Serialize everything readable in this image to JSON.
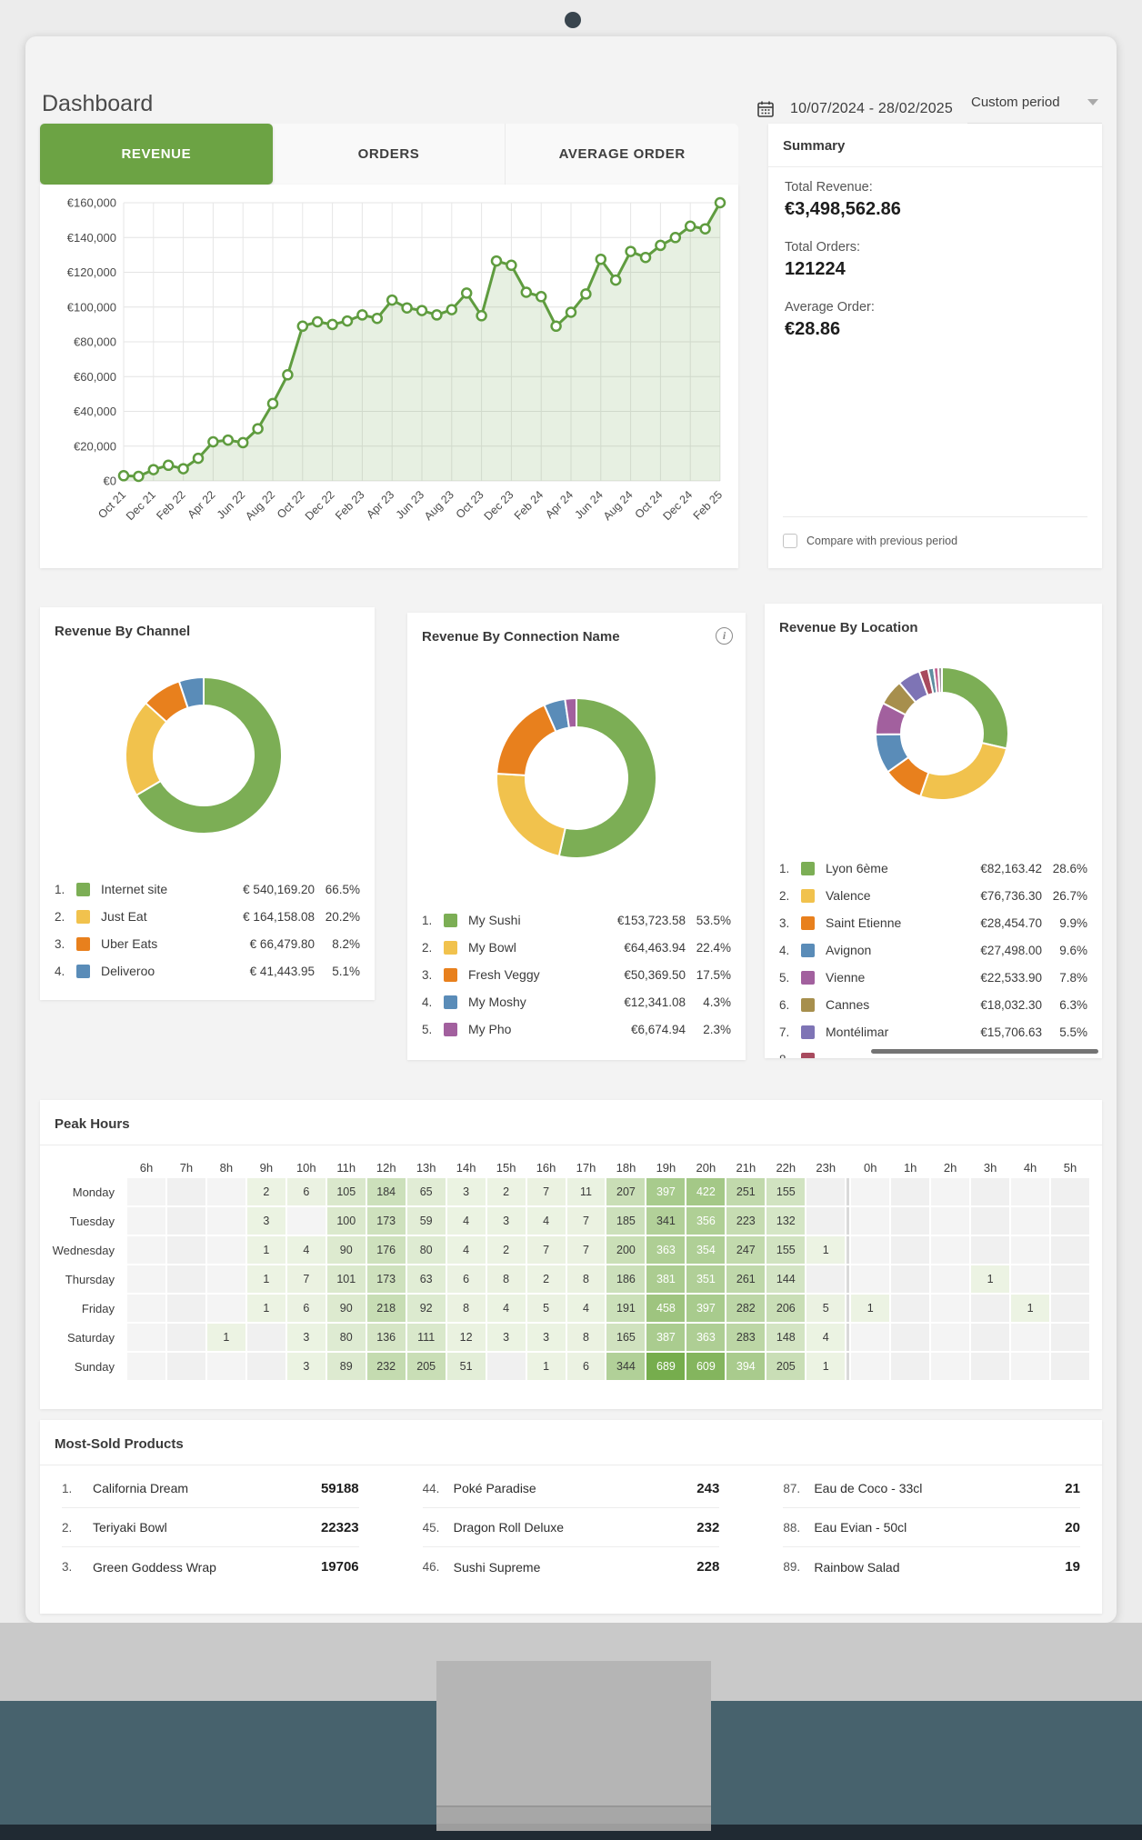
{
  "header": {
    "title": "Dashboard",
    "date_range": "10/07/2024 - 28/02/2025",
    "period_selector": "Custom period"
  },
  "tabs": [
    {
      "label": "REVENUE",
      "active": true
    },
    {
      "label": "ORDERS",
      "active": false
    },
    {
      "label": "AVERAGE ORDER",
      "active": false
    }
  ],
  "summary": {
    "title": "Summary",
    "total_revenue_label": "Total Revenue:",
    "total_revenue": "€3,498,562.86",
    "total_orders_label": "Total Orders:",
    "total_orders": "121224",
    "average_order_label": "Average Order:",
    "average_order": "€28.86",
    "compare_label": "Compare with previous period"
  },
  "colors": {
    "accent_green": "#6ca344",
    "line_green": "#5f9c3f",
    "heat_low": "#ecf3e3",
    "heat_high": "#76ad4d"
  },
  "chart_data": [
    {
      "id": "revenue-trend",
      "type": "line",
      "title": "Revenue by month",
      "ylabel": "",
      "xlabel": "",
      "ylim": [
        0,
        160000
      ],
      "y_ticks": [
        "€0",
        "€20,000",
        "€40,000",
        "€60,000",
        "€80,000",
        "€100,000",
        "€120,000",
        "€140,000",
        "€160,000"
      ],
      "grid": true,
      "x": [
        "Oct 21",
        "Nov 21",
        "Dec 21",
        "Jan 22",
        "Feb 22",
        "Mar 22",
        "Apr 22",
        "May 22",
        "Jun 22",
        "Jul 22",
        "Aug 22",
        "Sep 22",
        "Oct 22",
        "Nov 22",
        "Dec 22",
        "Jan 23",
        "Feb 23",
        "Mar 23",
        "Apr 23",
        "May 23",
        "Jun 23",
        "Jul 23",
        "Aug 23",
        "Sep 23",
        "Oct 23",
        "Nov 23",
        "Dec 23",
        "Jan 24",
        "Feb 24",
        "Mar 24",
        "Apr 24",
        "May 24",
        "Jun 24",
        "Jul 24",
        "Aug 24",
        "Sep 24",
        "Oct 24",
        "Nov 24",
        "Dec 24",
        "Jan 25",
        "Feb 25"
      ],
      "x_tick_labels": [
        "Oct 21",
        "Dec 21",
        "Feb 22",
        "Apr 22",
        "Jun 22",
        "Aug 22",
        "Oct 22",
        "Dec 22",
        "Feb 23",
        "Apr 23",
        "Jun 23",
        "Aug 23",
        "Oct 23",
        "Dec 23",
        "Feb 24",
        "Apr 24",
        "Jun 24",
        "Aug 24",
        "Oct 24",
        "Dec 24",
        "Feb 25"
      ],
      "values": [
        3000,
        2600,
        6500,
        9000,
        7000,
        13000,
        22500,
        23500,
        22000,
        30000,
        44500,
        61000,
        89000,
        91500,
        90000,
        92000,
        95500,
        93500,
        104000,
        99500,
        98000,
        95500,
        98500,
        108000,
        95000,
        126500,
        124000,
        108500,
        106000,
        89000,
        97000,
        107500,
        127500,
        115500,
        132000,
        128500,
        135500,
        140000,
        146500,
        145000,
        160000
      ]
    },
    {
      "id": "revenue-by-channel",
      "type": "donut",
      "title": "Revenue By Channel",
      "legend_position": "bottom",
      "items": [
        {
          "label": "Internet site",
          "amount": "€ 540,169.20",
          "pct": 66.5,
          "color": "#7cae55"
        },
        {
          "label": "Just Eat",
          "amount": "€ 164,158.08",
          "pct": 20.2,
          "color": "#f1c24d"
        },
        {
          "label": "Uber Eats",
          "amount": "€ 66,479.80",
          "pct": 8.2,
          "color": "#e8801d"
        },
        {
          "label": "Deliveroo",
          "amount": "€ 41,443.95",
          "pct": 5.1,
          "color": "#5a8cb8"
        }
      ]
    },
    {
      "id": "revenue-by-connection-name",
      "type": "donut",
      "title": "Revenue By Connection Name",
      "legend_position": "bottom",
      "items": [
        {
          "label": "My Sushi",
          "amount": "€153,723.58",
          "pct": 53.5,
          "color": "#7cae55"
        },
        {
          "label": "My Bowl",
          "amount": "€64,463.94",
          "pct": 22.4,
          "color": "#f1c24d"
        },
        {
          "label": "Fresh Veggy",
          "amount": "€50,369.50",
          "pct": 17.5,
          "color": "#e8801d"
        },
        {
          "label": "My Moshy",
          "amount": "€12,341.08",
          "pct": 4.3,
          "color": "#5a8cb8"
        },
        {
          "label": "My Pho",
          "amount": "€6,674.94",
          "pct": 2.3,
          "color": "#a2609e"
        }
      ]
    },
    {
      "id": "revenue-by-location",
      "type": "donut",
      "title": "Revenue By Location",
      "legend_position": "bottom",
      "items": [
        {
          "label": "Lyon 6ème",
          "amount": "€82,163.42",
          "pct": 28.6,
          "color": "#7cae55"
        },
        {
          "label": "Valence",
          "amount": "€76,736.30",
          "pct": 26.7,
          "color": "#f1c24d"
        },
        {
          "label": "Saint Etienne",
          "amount": "€28,454.70",
          "pct": 9.9,
          "color": "#e8801d"
        },
        {
          "label": "Avignon",
          "amount": "€27,498.00",
          "pct": 9.6,
          "color": "#5a8cb8"
        },
        {
          "label": "Vienne",
          "amount": "€22,533.90",
          "pct": 7.8,
          "color": "#a2609e"
        },
        {
          "label": "Cannes",
          "amount": "€18,032.30",
          "pct": 6.3,
          "color": "#a78f4d"
        },
        {
          "label": "Montélimar",
          "amount": "€15,706.63",
          "pct": 5.5,
          "color": "#7e74b5"
        }
      ],
      "extra_slices": [
        {
          "pct": 2.2,
          "color": "#a84a5e"
        },
        {
          "pct": 1.4,
          "color": "#5f8ea0"
        },
        {
          "pct": 1.1,
          "color": "#c2608e"
        },
        {
          "pct": 0.9,
          "color": "#9a9a9a"
        }
      ],
      "partial_row_rank": "8."
    },
    {
      "id": "peak-hours",
      "type": "heatmap",
      "title": "Peak Hours",
      "columns": [
        "6h",
        "7h",
        "8h",
        "9h",
        "10h",
        "11h",
        "12h",
        "13h",
        "14h",
        "15h",
        "16h",
        "17h",
        "18h",
        "19h",
        "20h",
        "21h",
        "22h",
        "23h",
        "0h",
        "1h",
        "2h",
        "3h",
        "4h",
        "5h"
      ],
      "rows": [
        "Monday",
        "Tuesday",
        "Wednesday",
        "Thursday",
        "Friday",
        "Saturday",
        "Sunday"
      ],
      "values": [
        [
          null,
          null,
          null,
          2,
          6,
          105,
          184,
          65,
          3,
          2,
          7,
          11,
          207,
          397,
          422,
          251,
          155,
          null,
          null,
          null,
          null,
          null,
          null,
          null
        ],
        [
          null,
          null,
          null,
          3,
          null,
          100,
          173,
          59,
          4,
          3,
          4,
          7,
          185,
          341,
          356,
          223,
          132,
          null,
          null,
          null,
          null,
          null,
          null,
          null
        ],
        [
          null,
          null,
          null,
          1,
          4,
          90,
          176,
          80,
          4,
          2,
          7,
          7,
          200,
          363,
          354,
          247,
          155,
          1,
          null,
          null,
          null,
          null,
          null,
          null
        ],
        [
          null,
          null,
          null,
          1,
          7,
          101,
          173,
          63,
          6,
          8,
          2,
          8,
          186,
          381,
          351,
          261,
          144,
          null,
          null,
          null,
          null,
          1,
          null,
          null
        ],
        [
          null,
          null,
          null,
          1,
          6,
          90,
          218,
          92,
          8,
          4,
          5,
          4,
          191,
          458,
          397,
          282,
          206,
          5,
          1,
          null,
          null,
          null,
          1,
          null
        ],
        [
          null,
          null,
          1,
          null,
          3,
          80,
          136,
          111,
          12,
          3,
          3,
          8,
          165,
          387,
          363,
          283,
          148,
          4,
          null,
          null,
          null,
          null,
          null,
          null
        ],
        [
          null,
          null,
          null,
          null,
          3,
          89,
          232,
          205,
          51,
          null,
          1,
          6,
          344,
          689,
          609,
          394,
          205,
          1,
          null,
          null,
          null,
          null,
          null,
          null
        ]
      ]
    }
  ],
  "products": {
    "title": "Most-Sold Products",
    "columns": [
      [
        {
          "rank": "1.",
          "name": "California Dream",
          "qty": "59188"
        },
        {
          "rank": "2.",
          "name": "Teriyaki Bowl",
          "qty": "22323"
        },
        {
          "rank": "3.",
          "name": "Green Goddess Wrap",
          "qty": "19706"
        }
      ],
      [
        {
          "rank": "44.",
          "name": "Poké Paradise",
          "qty": "243"
        },
        {
          "rank": "45.",
          "name": "Dragon Roll Deluxe",
          "qty": "232"
        },
        {
          "rank": "46.",
          "name": "Sushi Supreme",
          "qty": "228"
        }
      ],
      [
        {
          "rank": "87.",
          "name": "Eau de Coco - 33cl",
          "qty": "21"
        },
        {
          "rank": "88.",
          "name": "Eau Evian - 50cl",
          "qty": "20"
        },
        {
          "rank": "89.",
          "name": "Rainbow Salad",
          "qty": "19"
        }
      ]
    ]
  }
}
